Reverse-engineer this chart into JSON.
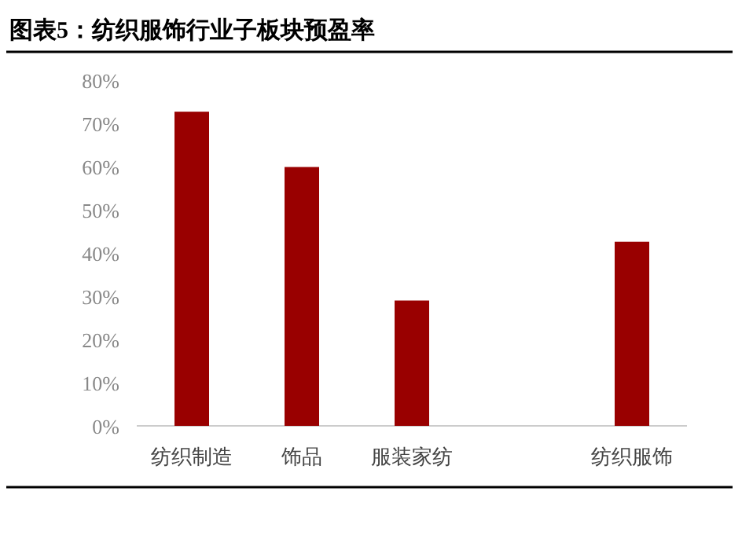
{
  "chart_data": {
    "type": "bar",
    "title": "图表5：纺织服饰行业子板块预盈率",
    "categories": [
      "纺织制造",
      "饰品",
      "服装家纺",
      null,
      "纺织服饰"
    ],
    "values": [
      72.7,
      59.9,
      29.0,
      null,
      42.6
    ],
    "color": "#990000",
    "ylim": [
      0,
      80
    ],
    "yticks": [
      {
        "value": 0,
        "label": "0%"
      },
      {
        "value": 10,
        "label": "10%"
      },
      {
        "value": 20,
        "label": "20%"
      },
      {
        "value": 30,
        "label": "30%"
      },
      {
        "value": 40,
        "label": "40%"
      },
      {
        "value": 50,
        "label": "50%"
      },
      {
        "value": 60,
        "label": "60%"
      },
      {
        "value": 70,
        "label": "70%"
      },
      {
        "value": 80,
        "label": "80%"
      }
    ]
  }
}
